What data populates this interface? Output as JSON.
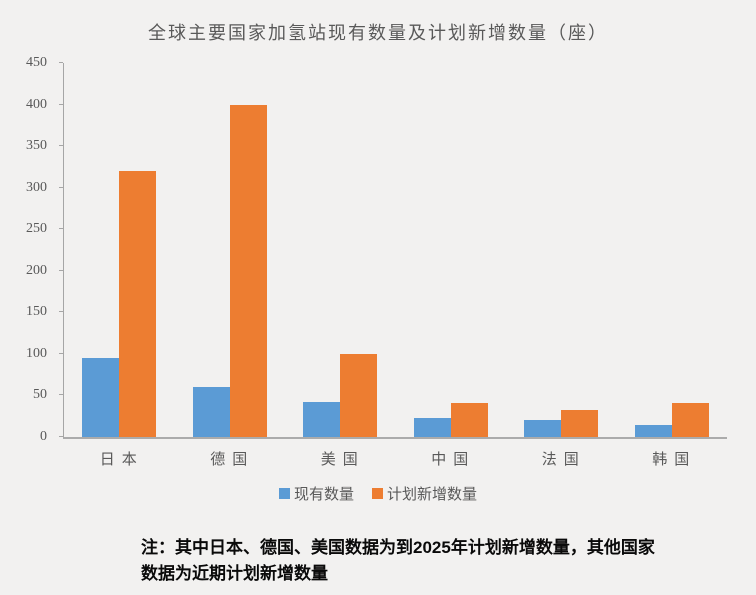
{
  "title": "全球主要国家加氢站现有数量及计划新增数量（座）",
  "note": {
    "line1": "注：其中日本、德国、美国数据为到2025年计划新增数量，其他国家",
    "line2": "数据为近期计划新增数量"
  },
  "colors": {
    "background": "#f2f1f0",
    "text": "#595959",
    "axis": "#a6a6a6",
    "series_existing": "#5B9BD5",
    "series_planned": "#ED7D31"
  },
  "chart_data": {
    "type": "bar",
    "title": "全球主要国家加氢站现有数量及计划新增数量（座）",
    "categories": [
      "日本",
      "德国",
      "美国",
      "中国",
      "法国",
      "韩国"
    ],
    "series": [
      {
        "name": "现有数量",
        "color": "#5B9BD5",
        "values": [
          95,
          60,
          42,
          23,
          20,
          14
        ]
      },
      {
        "name": "计划新增数量",
        "color": "#ED7D31",
        "values": [
          320,
          400,
          100,
          41,
          32,
          41
        ]
      }
    ],
    "xlabel": "",
    "ylabel": "",
    "ylim": [
      0,
      450
    ],
    "yticks": [
      0,
      50,
      100,
      150,
      200,
      250,
      300,
      350,
      400,
      450
    ],
    "grid": false,
    "legend_position": "bottom"
  }
}
